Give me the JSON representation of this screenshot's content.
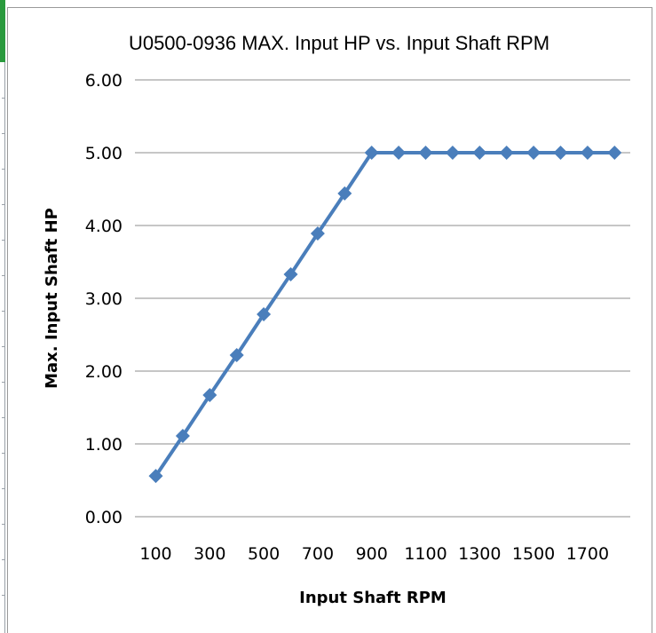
{
  "chart_data": {
    "type": "line",
    "title": "U0500-0936 MAX. Input HP vs. Input Shaft RPM",
    "xlabel": "Input Shaft RPM",
    "ylabel": "Max. Input Shaft HP",
    "x": [
      100,
      200,
      300,
      400,
      500,
      600,
      700,
      800,
      900,
      1000,
      1100,
      1200,
      1300,
      1400,
      1500,
      1600,
      1700,
      1800
    ],
    "x_tick_labels": [
      "100",
      "300",
      "500",
      "700",
      "900",
      "1100",
      "1300",
      "1500",
      "1700"
    ],
    "y_tick_labels": [
      "0.00",
      "1.00",
      "2.00",
      "3.00",
      "4.00",
      "5.00",
      "6.00"
    ],
    "ylim": [
      0,
      6
    ],
    "grid": true,
    "series": [
      {
        "values": [
          0.56,
          1.11,
          1.67,
          2.22,
          2.78,
          3.33,
          3.89,
          4.44,
          5.0,
          5.0,
          5.0,
          5.0,
          5.0,
          5.0,
          5.0,
          5.0,
          5.0,
          5.0
        ],
        "color": "#4a7ebb",
        "marker": "diamond"
      }
    ],
    "gridline_color": "#8c8c8c"
  }
}
